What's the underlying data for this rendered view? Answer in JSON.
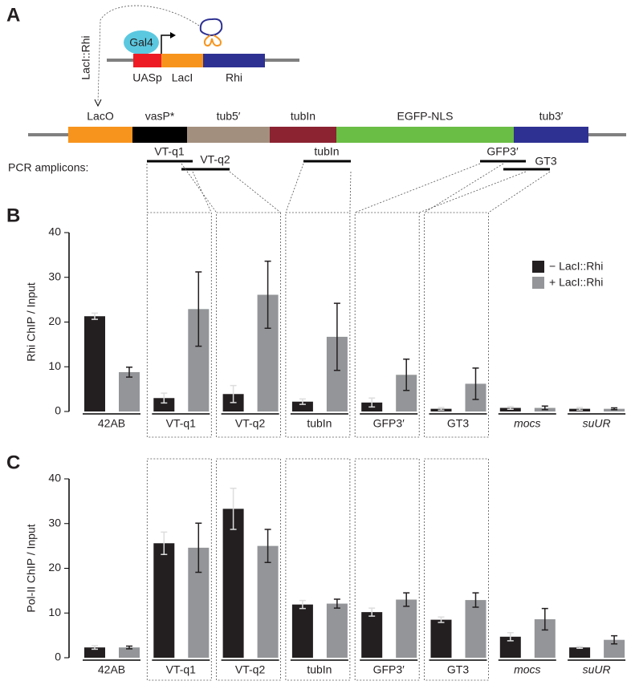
{
  "diagram": {
    "label": "A",
    "gal4": "Gal4",
    "fusion": "LacI::Rhi",
    "small_construct": [
      {
        "label": "UASp",
        "color": "#ed1c24"
      },
      {
        "label": "LacI",
        "color": "#f7941d"
      },
      {
        "label": "Rhi",
        "color": "#2e3192"
      }
    ],
    "elements": [
      {
        "label": "LacO",
        "color": "#f7941d",
        "text_color": "#f7941d"
      },
      {
        "label": "vasP*",
        "color": "#000000",
        "text_color": "#000000"
      },
      {
        "label": "tub5′",
        "color": "#a38f7e",
        "text_color": "#a38f7e"
      },
      {
        "label": "tubIn",
        "color": "#8b2331",
        "text_color": "#8b2331"
      },
      {
        "label": "EGFP-NLS",
        "color": "#6abd45",
        "text_color": "#6abd45"
      },
      {
        "label": "tub3′",
        "color": "#2e3192",
        "text_color": "#2e3192"
      }
    ],
    "amplicons_label": "PCR amplicons:",
    "amplicons": [
      "VT-q1",
      "VT-q2",
      "tubIn",
      "GFP3′",
      "GT3"
    ]
  },
  "chart_data": [
    {
      "type": "bar",
      "label": "B",
      "y_label": "Rhi ChIP / Input",
      "categories": [
        "42AB",
        "VT-q1",
        "VT-q2",
        "tubIn",
        "GFP3′",
        "GT3",
        "mocs",
        "suUR"
      ],
      "category_style": [
        "normal",
        "normal",
        "normal",
        "normal",
        "normal",
        "normal",
        "italic",
        "italic"
      ],
      "ylim": [
        0,
        40
      ],
      "yticks": [
        0,
        10,
        20,
        30,
        40
      ],
      "legend": "upper right",
      "series": [
        {
          "name": "− LacI::Rhi",
          "color": "#231f20",
          "values": [
            21.3,
            3,
            3.9,
            2.2,
            2,
            0.6,
            0.8,
            0.6
          ],
          "errors": [
            0.7,
            1.1,
            1.9,
            0.6,
            1,
            0.3,
            0.3,
            0.3
          ]
        },
        {
          "name": "+ LacI::Rhi",
          "color": "#939598",
          "values": [
            8.8,
            22.9,
            26.1,
            16.7,
            8.2,
            6.2,
            0.8,
            0.6
          ],
          "errors": [
            1.1,
            8.3,
            7.5,
            7.5,
            3.5,
            3.5,
            0.4,
            0.2
          ]
        }
      ]
    },
    {
      "type": "bar",
      "label": "C",
      "y_label": "Pol-II ChIP / Input",
      "categories": [
        "42AB",
        "VT-q1",
        "VT-q2",
        "tubIn",
        "GFP3′",
        "GT3",
        "mocs",
        "suUR"
      ],
      "category_style": [
        "normal",
        "normal",
        "normal",
        "normal",
        "normal",
        "normal",
        "italic",
        "italic"
      ],
      "ylim": [
        0,
        40
      ],
      "yticks": [
        0,
        10,
        20,
        30,
        40
      ],
      "series": [
        {
          "color": "#231f20",
          "values": [
            2.3,
            25.6,
            33.3,
            11.9,
            10.2,
            8.5,
            4.7,
            2.3
          ],
          "errors": [
            0.4,
            2.5,
            4.6,
            0.9,
            0.9,
            0.6,
            0.9,
            0.2
          ]
        },
        {
          "color": "#939598",
          "values": [
            2.3,
            24.6,
            25,
            12.1,
            13,
            12.9,
            8.6,
            4
          ],
          "errors": [
            0.3,
            5.5,
            3.7,
            1,
            1.5,
            1.6,
            2.4,
            0.9
          ]
        }
      ]
    }
  ]
}
